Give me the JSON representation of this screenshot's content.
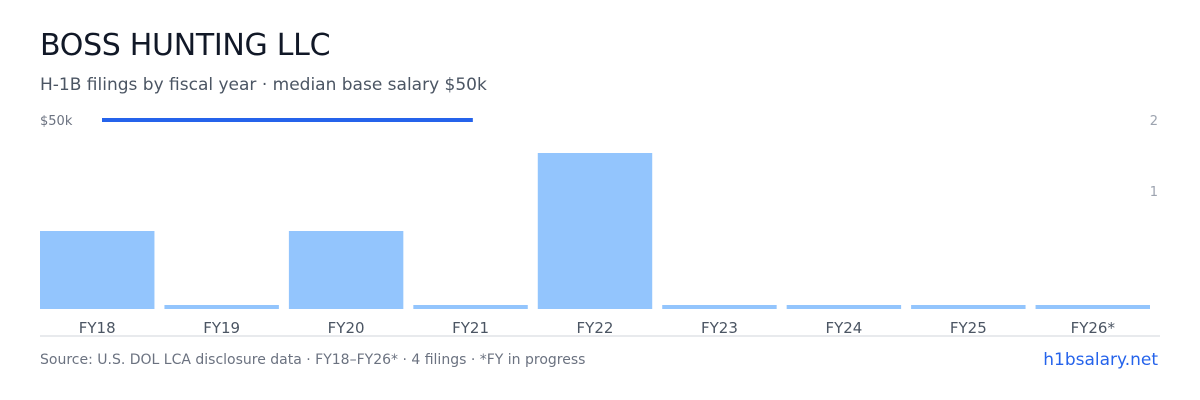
{
  "header": {
    "title": "BOSS HUNTING LLC",
    "subtitle": "H-1B filings by fiscal year · median base salary $50k"
  },
  "footer": {
    "source": "Source: U.S. DOL LCA disclosure data · FY18–FY26* · 4 filings · *FY in progress",
    "brand": "h1bsalary.net"
  },
  "colors": {
    "bar": "#93c5fd",
    "salary_line": "#2563eb",
    "axis_text": "#9ca3af",
    "category_text": "#4b5563",
    "baseline": "#d1d5db"
  },
  "chart_data": {
    "type": "bar",
    "categories": [
      "FY18",
      "FY19",
      "FY20",
      "FY21",
      "FY22",
      "FY23",
      "FY24",
      "FY25",
      "FY26*"
    ],
    "series": [
      {
        "values": [
          1,
          0,
          1,
          0,
          2,
          0,
          0,
          0,
          0
        ]
      }
    ],
    "right_axis": {
      "ticks": [
        1,
        2
      ],
      "tick_labels": [
        "1",
        "2"
      ]
    },
    "salary_overlay": {
      "label": "$50k",
      "value": 50000,
      "from_category": "FY18",
      "to_category": "FY21"
    },
    "grid": false,
    "legend": "none"
  }
}
